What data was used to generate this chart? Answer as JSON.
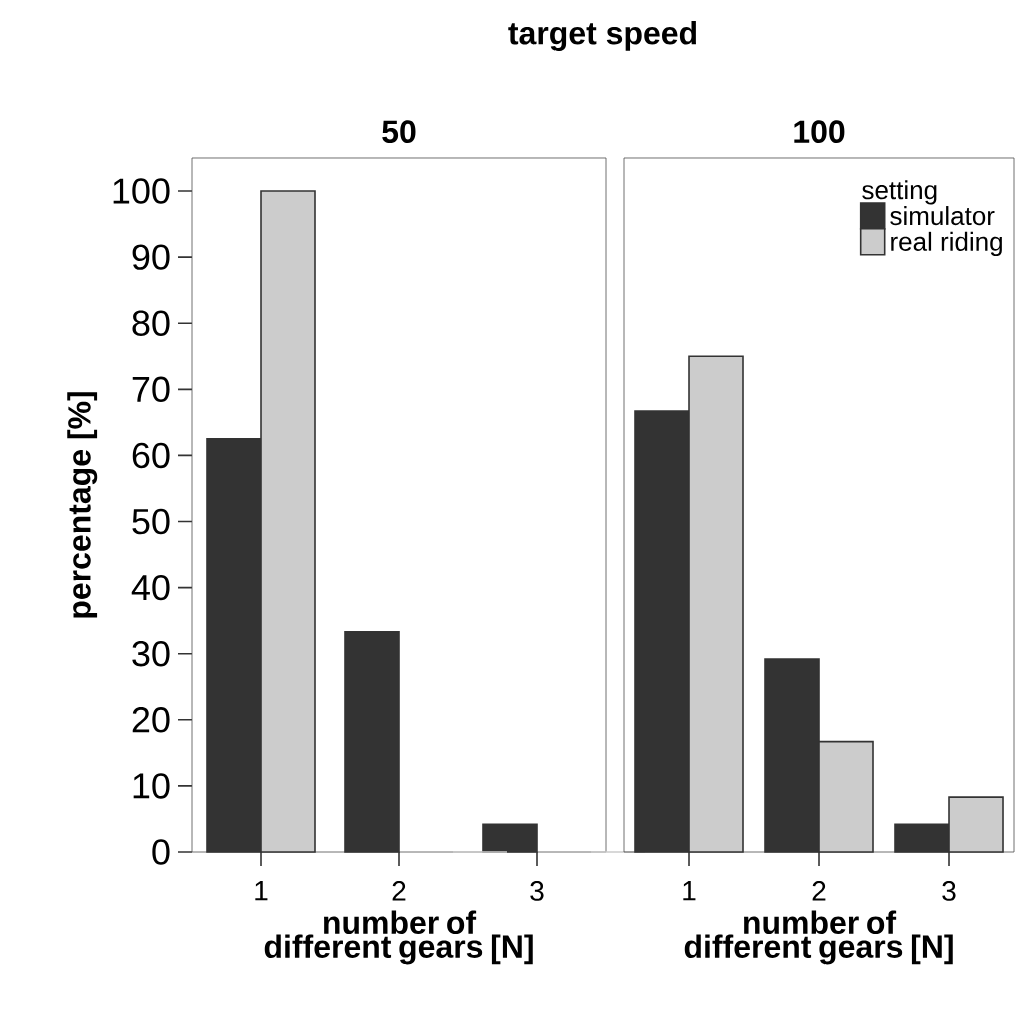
{
  "chart_data": [
    {
      "type": "bar",
      "title": "target speed",
      "subtitle": "50",
      "xlabel": "number of different gears [N]",
      "ylabel": "percentage [%]",
      "categories": [
        "1",
        "2",
        "3"
      ],
      "ylim": [
        0,
        105
      ],
      "yticks": [
        0,
        10,
        20,
        30,
        40,
        50,
        60,
        70,
        80,
        90,
        100
      ],
      "series": [
        {
          "color": "#333333",
          "values": [
            62.5,
            33.3,
            4.2
          ]
        },
        {
          "color": "#cccccc",
          "values": [
            100,
            0,
            0
          ]
        }
      ]
    },
    {
      "type": "bar",
      "subtitle": "100",
      "xlabel": "number of different gears [N]",
      "categories": [
        "1",
        "2",
        "3"
      ],
      "ylim": [
        0,
        105
      ],
      "tick_labels": "x",
      "legend": "top right",
      "legend_title": "setting",
      "series": [
        {
          "name": "simulator",
          "color": "#333333",
          "values": [
            66.7,
            29.2,
            4.2
          ]
        },
        {
          "name": "real riding",
          "color": "#cccccc",
          "values": [
            75,
            16.7,
            8.3
          ]
        }
      ]
    }
  ]
}
